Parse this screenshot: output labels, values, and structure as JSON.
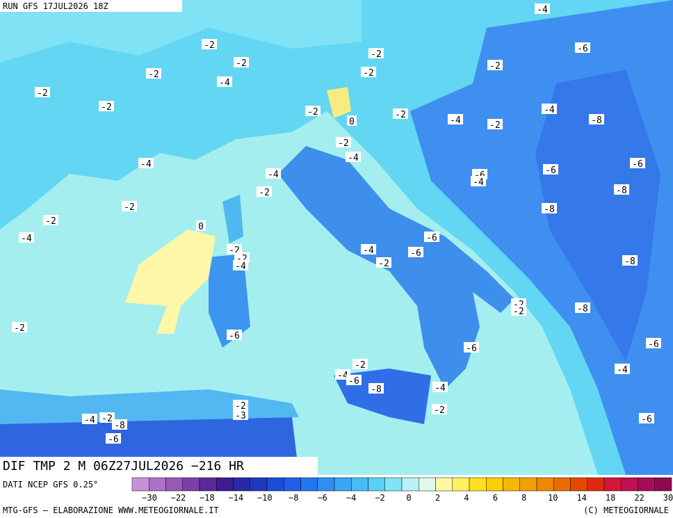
{
  "header": {
    "run": "RUN GFS 17JUL2026 18Z"
  },
  "map": {
    "title": "DIF TMP 2 M 06Z27JUL2026 −216 HR",
    "source": "DATI NCEP GFS 0.25°",
    "contour_labels": [
      "-4",
      "-2",
      "-2",
      "-2",
      "-2",
      "-2",
      "-6",
      "-2",
      "-4",
      "-2",
      "-2",
      "-2",
      "-4",
      "-2",
      "-4",
      "-2",
      "0",
      "-8",
      "-2",
      "-4",
      "-4",
      "-6",
      "-4",
      "-6",
      "-4",
      "-6",
      "-2",
      "-8",
      "-2",
      "-8",
      "-2",
      "0",
      "-4",
      "-6",
      "-2",
      "-4",
      "-6",
      "-2",
      "-4",
      "-2",
      "-8",
      "-2",
      "-2",
      "-8",
      "-2",
      "-6",
      "-6",
      "-6",
      "-2",
      "-4",
      "-4",
      "-6",
      "-8",
      "-4",
      "-2",
      "-2",
      "-3",
      "-4",
      "-2",
      "-8",
      "-6",
      "-6"
    ]
  },
  "colorbar": {
    "labels": [
      "−30",
      "−22",
      "−18",
      "−14",
      "−10",
      "−8",
      "−6",
      "−4",
      "−2",
      "0",
      "2",
      "4",
      "6",
      "8",
      "10",
      "14",
      "18",
      "22",
      "30"
    ]
  },
  "footer": {
    "left": "MTG-GFS — ELABORAZIONE WWW.METEOGIORNALE.IT",
    "right": "(C) METEOGIORNALE"
  }
}
